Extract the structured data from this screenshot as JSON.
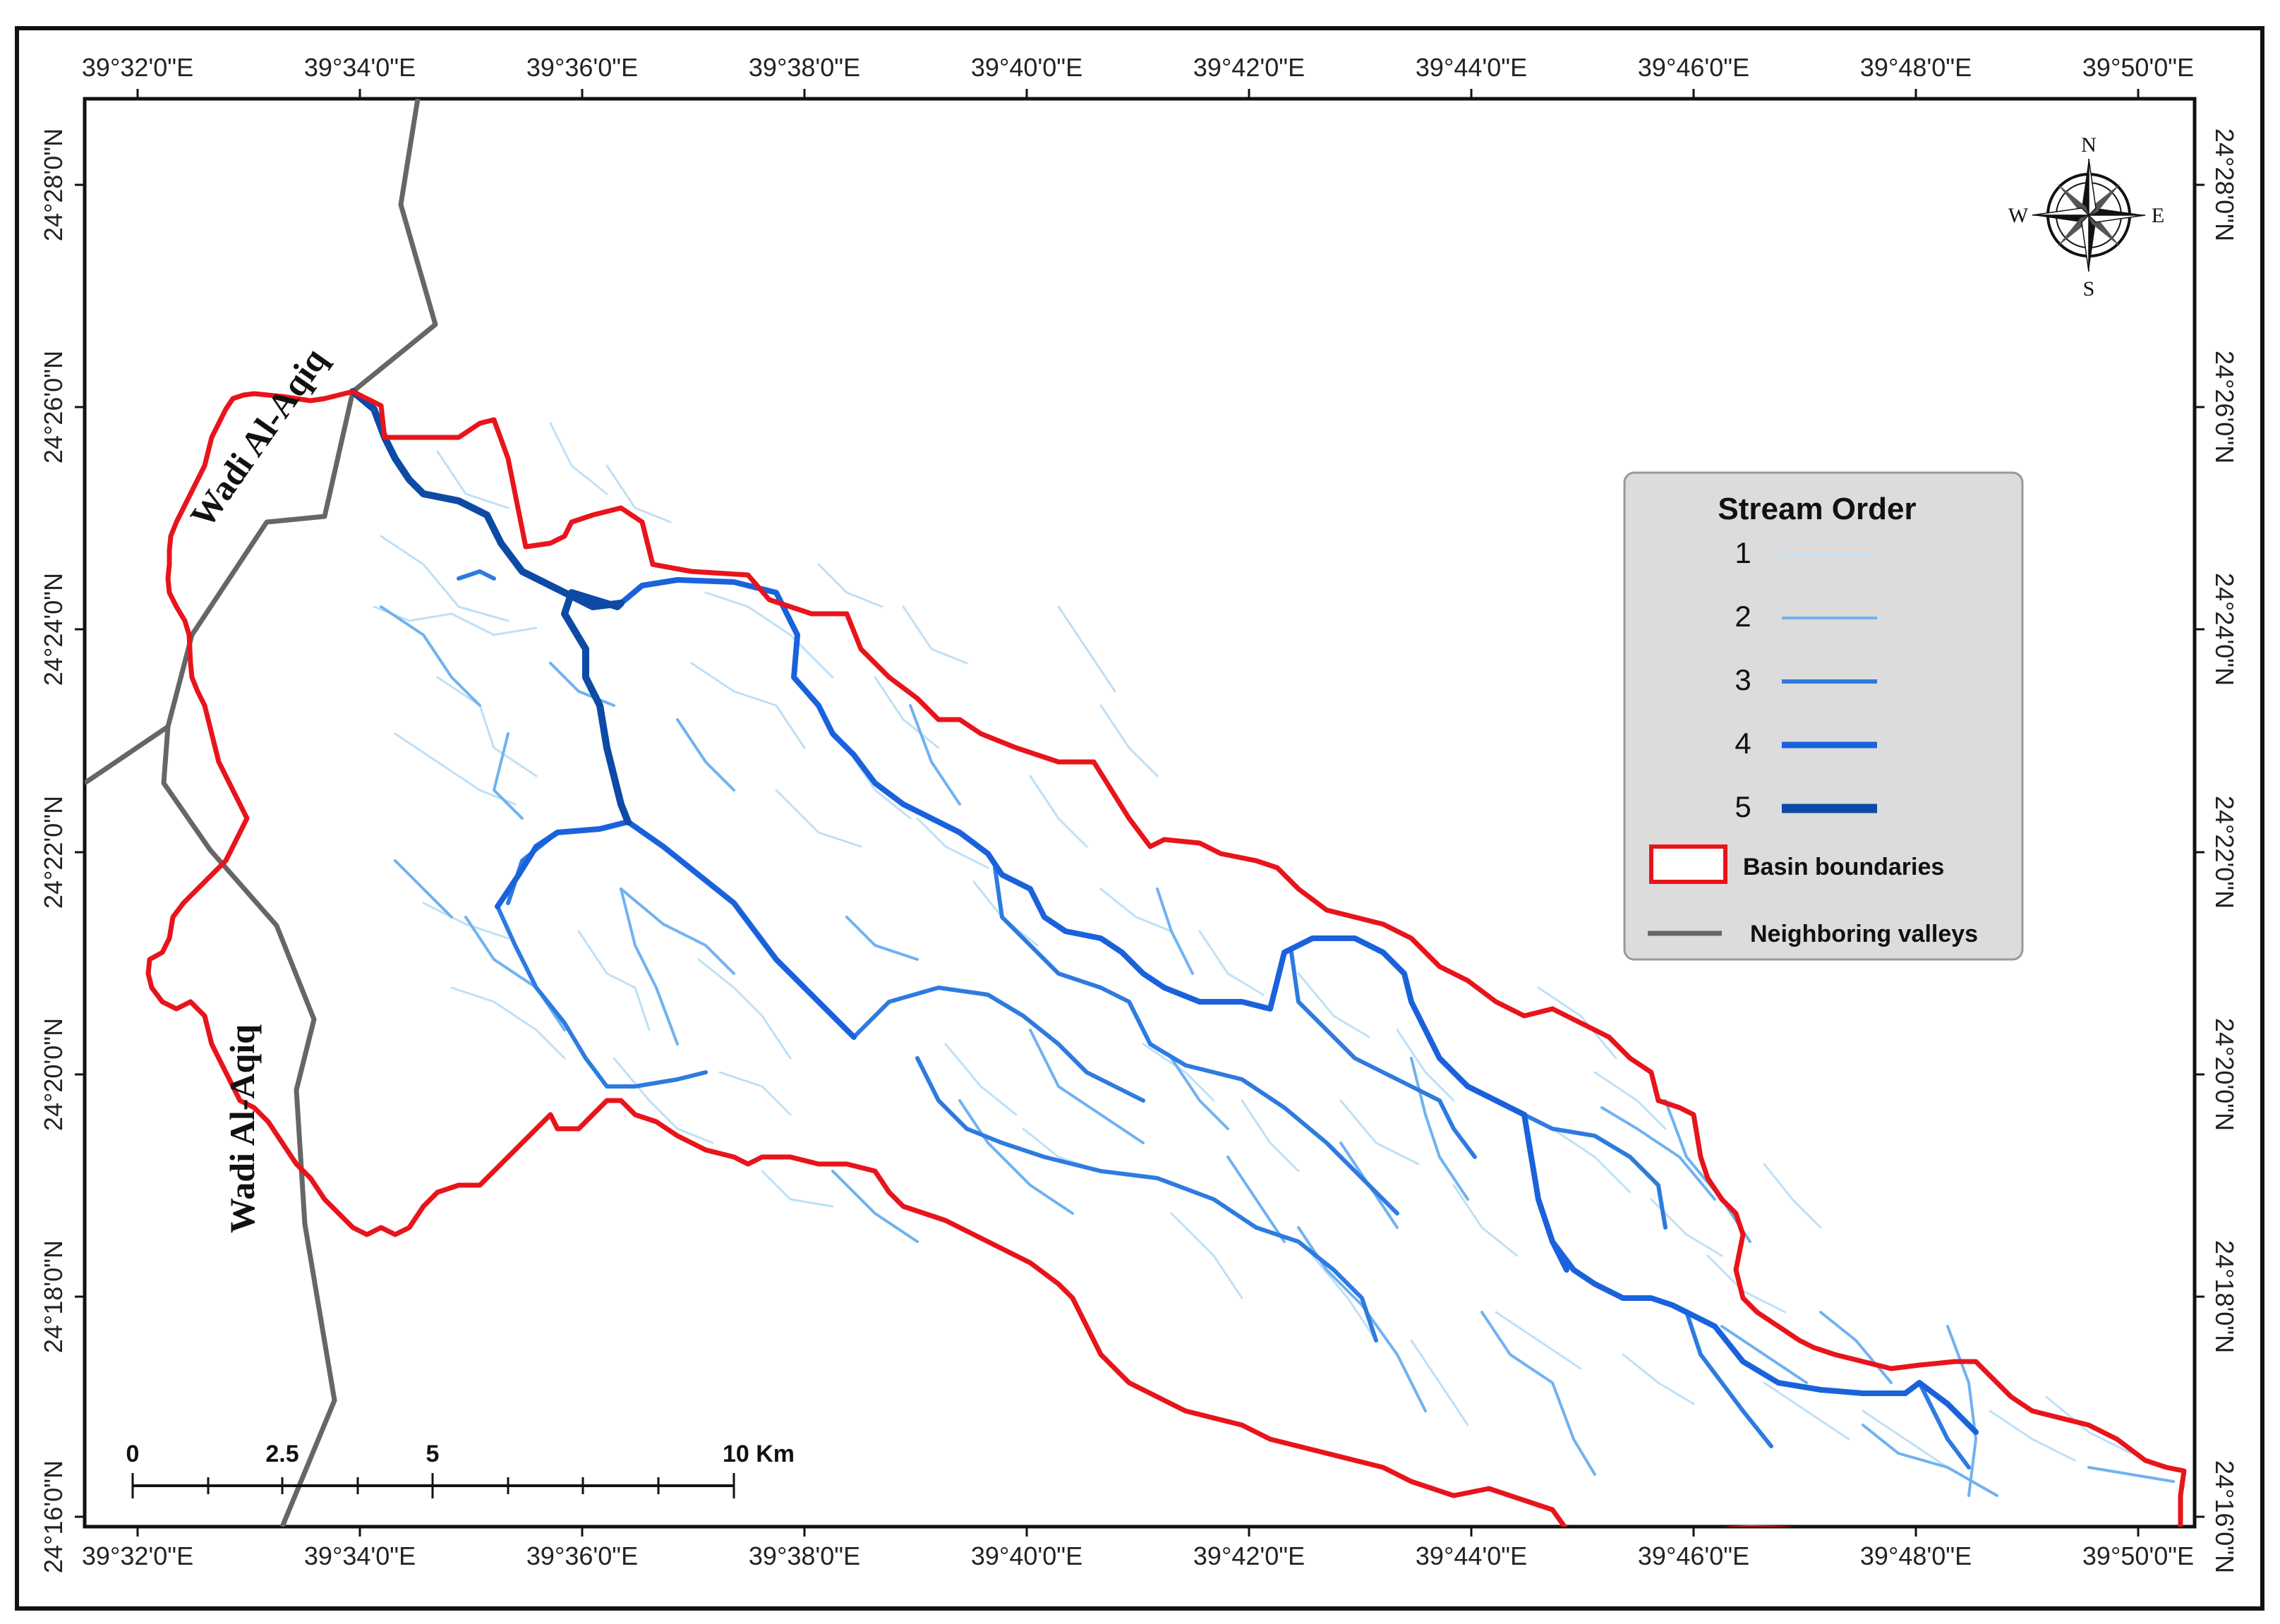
{
  "map": {
    "colors": {
      "basin": "#e8141c",
      "valley": "#666666",
      "order1": "#bfe0f7",
      "order2": "#6fb2f0",
      "order3": "#2e7be0",
      "order4": "#1a62dc",
      "order5": "#0d4aa6"
    },
    "labels": {
      "valley_north": "Wadi Al-Aqiq",
      "valley_south": "Wadi Al-Aqiq"
    },
    "graticule": {
      "longitudes": [
        "39°32'0\"E",
        "39°34'0\"E",
        "39°36'0\"E",
        "39°38'0\"E",
        "39°40'0\"E",
        "39°42'0\"E",
        "39°44'0\"E",
        "39°46'0\"E",
        "39°48'0\"E",
        "39°50'0\"E"
      ],
      "latitudes": [
        "24°28'0\"N",
        "24°26'0\"N",
        "24°24'0\"N",
        "24°22'0\"N",
        "24°20'0\"N",
        "24°18'0\"N",
        "24°16'0\"N"
      ]
    },
    "legend": {
      "title": "Stream Order",
      "orders": [
        "1",
        "2",
        "3",
        "4",
        "5"
      ],
      "basin_label": "Basin boundaries",
      "valley_label": "Neighboring valleys"
    },
    "scalebar": {
      "labels": [
        "0",
        "2.5",
        "5",
        "10 Km"
      ]
    },
    "compass": {
      "n": "N",
      "s": "S",
      "e": "E",
      "w": "W"
    }
  }
}
